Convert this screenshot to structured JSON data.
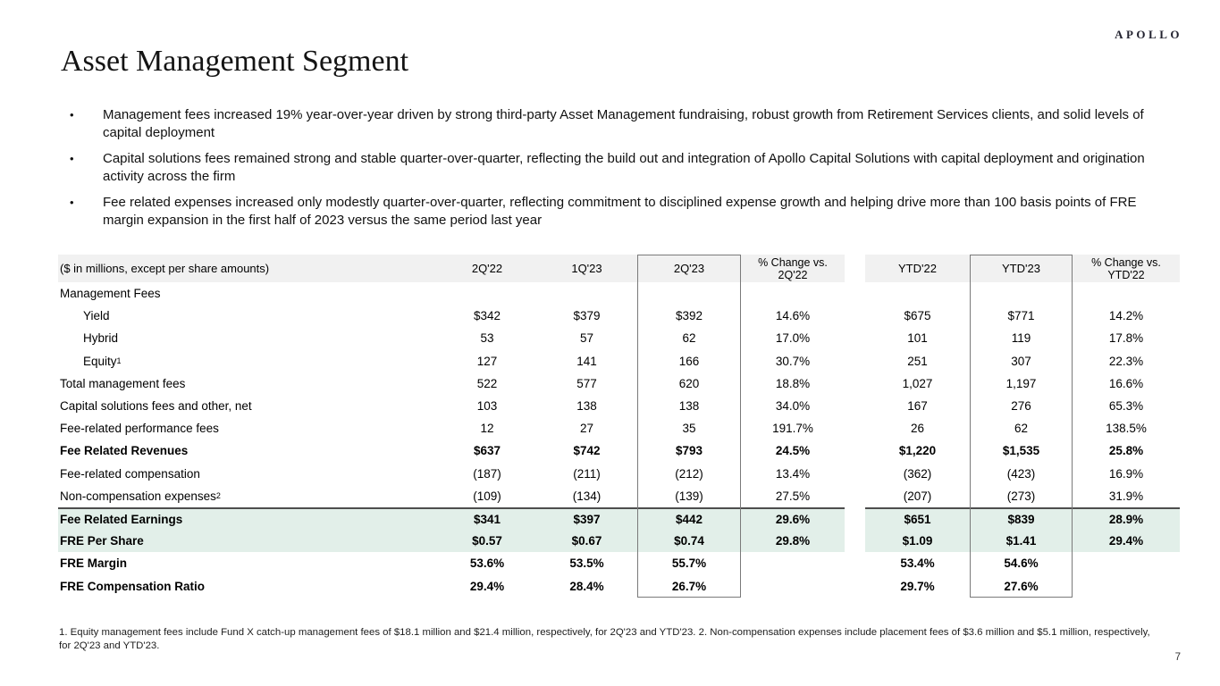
{
  "logo": "APOLLO",
  "page_number": "7",
  "title": "Asset Management Segment",
  "bullets": [
    "Management fees increased 19% year-over-year driven by strong third-party Asset Management fundraising, robust growth from Retirement Services clients, and solid levels of capital deployment",
    "Capital solutions fees remained strong and stable quarter-over-quarter, reflecting the build out and integration of Apollo Capital Solutions with capital deployment and origination activity across the firm",
    "Fee related expenses increased only modestly quarter-over-quarter, reflecting commitment to disciplined expense growth and helping drive more than 100 basis points of FRE margin expansion in the first half of 2023 versus the same period last year"
  ],
  "table": {
    "header_label": "($ in millions, except per share amounts)",
    "columns": [
      {
        "lines": [
          "2Q'22"
        ]
      },
      {
        "lines": [
          "1Q'23"
        ]
      },
      {
        "lines": [
          "2Q'23"
        ]
      },
      {
        "lines": [
          "% Change vs.",
          "2Q'22"
        ]
      },
      {
        "lines": [
          "YTD'22"
        ]
      },
      {
        "lines": [
          "YTD'23"
        ]
      },
      {
        "lines": [
          "% Change vs.",
          "YTD'22"
        ]
      }
    ],
    "rows": [
      {
        "label": "Management Fees",
        "type": "section",
        "values": [
          "",
          "",
          "",
          "",
          "",
          "",
          ""
        ]
      },
      {
        "label": "Yield",
        "type": "sub",
        "values": [
          "$342",
          "$379",
          "$392",
          "14.6%",
          "$675",
          "$771",
          "14.2%"
        ]
      },
      {
        "label": "Hybrid",
        "type": "sub",
        "values": [
          "53",
          "57",
          "62",
          "17.0%",
          "101",
          "119",
          "17.8%"
        ]
      },
      {
        "label": "Equity",
        "sup": "1",
        "type": "sub",
        "values": [
          "127",
          "141",
          "166",
          "30.7%",
          "251",
          "307",
          "22.3%"
        ]
      },
      {
        "label": "Total management fees",
        "type": "normal",
        "values": [
          "522",
          "577",
          "620",
          "18.8%",
          "1,027",
          "1,197",
          "16.6%"
        ]
      },
      {
        "label": "Capital solutions fees and other, net",
        "type": "normal",
        "values": [
          "103",
          "138",
          "138",
          "34.0%",
          "167",
          "276",
          "65.3%"
        ]
      },
      {
        "label": "Fee-related performance fees",
        "type": "normal",
        "values": [
          "12",
          "27",
          "35",
          "191.7%",
          "26",
          "62",
          "138.5%"
        ]
      },
      {
        "label": "Fee Related Revenues",
        "type": "bold",
        "values": [
          "$637",
          "$742",
          "$793",
          "24.5%",
          "$1,220",
          "$1,535",
          "25.8%"
        ]
      },
      {
        "label": "Fee-related compensation",
        "type": "normal",
        "values": [
          "(187)",
          "(211)",
          "(212)",
          "13.4%",
          "(362)",
          "(423)",
          "16.9%"
        ]
      },
      {
        "label": "Non-compensation expenses",
        "sup": "2",
        "type": "normal",
        "values": [
          "(109)",
          "(134)",
          "(139)",
          "27.5%",
          "(207)",
          "(273)",
          "31.9%"
        ]
      },
      {
        "label": "Fee Related Earnings",
        "type": "highlight",
        "topline": true,
        "values": [
          "$341",
          "$397",
          "$442",
          "29.6%",
          "$651",
          "$839",
          "28.9%"
        ]
      },
      {
        "label": "FRE Per Share",
        "type": "highlight",
        "values": [
          "$0.57",
          "$0.67",
          "$0.74",
          "29.8%",
          "$1.09",
          "$1.41",
          "29.4%"
        ]
      },
      {
        "label": "FRE Margin",
        "type": "bold",
        "values": [
          "53.6%",
          "53.5%",
          "55.7%",
          "",
          "53.4%",
          "54.6%",
          ""
        ]
      },
      {
        "label": "FRE Compensation Ratio",
        "type": "bold",
        "values": [
          "29.4%",
          "28.4%",
          "26.7%",
          "",
          "29.7%",
          "27.6%",
          ""
        ]
      }
    ]
  },
  "footnote": "1. Equity management fees include Fund X catch-up management fees of $18.1 million and $21.4 million, respectively, for 2Q'23 and YTD'23. 2. Non-compensation expenses include placement fees of $3.6 million and $5.1 million, respectively, for 2Q'23 and YTD'23.",
  "colors": {
    "highlight_row_bg": "#e2efe9",
    "header_row_bg": "#f1f1f1",
    "column_box_border": "#7a7a7a",
    "earnings_divider": "#4d4d4d"
  }
}
